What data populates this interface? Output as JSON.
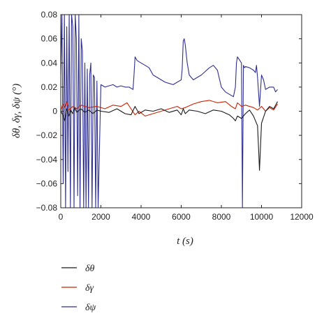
{
  "chart_data": {
    "type": "line",
    "xlabel": "t (s)",
    "ylabel": "δθ, δγ, δψ (°)",
    "xlim": [
      0,
      12000
    ],
    "ylim": [
      -0.08,
      0.08
    ],
    "xticks": [
      0,
      2000,
      4000,
      6000,
      8000,
      10000,
      12000
    ],
    "yticks": [
      0.08,
      0.06,
      0.04,
      0.02,
      0,
      -0.02,
      -0.04,
      -0.06,
      -0.08
    ],
    "xtick_labels": [
      "0",
      "2000",
      "4000",
      "6000",
      "8000",
      "10000",
      "12000"
    ],
    "ytick_labels": [
      "0.08",
      "0.06",
      "0.04",
      "0.02",
      "0",
      "−0.02",
      "−0.04",
      "−0.06",
      "−0.08"
    ],
    "grid": false,
    "legend_position": "below plot",
    "series": [
      {
        "name": "δθ",
        "color": "#1a1a1a",
        "x": [
          0,
          100,
          200,
          300,
          400,
          500,
          600,
          700,
          800,
          1000,
          1200,
          1400,
          1600,
          1800,
          2000,
          2400,
          2800,
          3200,
          3500,
          3700,
          3900,
          4200,
          4600,
          5000,
          5400,
          5800,
          6000,
          6100,
          6200,
          6400,
          6800,
          7200,
          7600,
          8000,
          8400,
          8600,
          8700,
          8800,
          9000,
          9200,
          9400,
          9600,
          9800,
          9850,
          9900,
          10000,
          10200,
          10400,
          10600,
          10800
        ],
        "y": [
          0,
          -0.003,
          -0.008,
          0.002,
          -0.004,
          0.001,
          -0.002,
          0.003,
          -0.001,
          0.002,
          -0.001,
          0.001,
          -0.002,
          0.001,
          0.0,
          -0.001,
          0.002,
          -0.002,
          -0.003,
          0.004,
          -0.002,
          0.001,
          0.0,
          0.002,
          -0.001,
          0.001,
          -0.003,
          0.002,
          -0.002,
          0.001,
          0.0,
          -0.002,
          0.001,
          0.0,
          -0.003,
          -0.006,
          -0.008,
          -0.004,
          -0.006,
          -0.002,
          0.001,
          -0.004,
          -0.012,
          -0.03,
          -0.049,
          -0.01,
          0.0,
          0.004,
          0.002,
          0.008
        ]
      },
      {
        "name": "δγ",
        "color": "#cc2200",
        "x": [
          0,
          100,
          200,
          300,
          400,
          600,
          800,
          1000,
          1400,
          1800,
          2200,
          2600,
          3000,
          3300,
          3500,
          3700,
          3900,
          4200,
          4600,
          5000,
          5400,
          5800,
          6000,
          6200,
          6600,
          7000,
          7400,
          7800,
          8200,
          8500,
          8700,
          8800,
          9000,
          9200,
          9600,
          9800,
          10000,
          10200,
          10400,
          10600,
          10800
        ],
        "y": [
          0,
          0.006,
          0.003,
          0.008,
          0.001,
          0.004,
          0.002,
          0.005,
          0.003,
          0.004,
          0.002,
          0.005,
          0.004,
          0.007,
          0.002,
          -0.003,
          0.0,
          -0.004,
          -0.002,
          0.0,
          0.002,
          0.004,
          0.002,
          0.003,
          0.006,
          0.008,
          0.009,
          0.007,
          0.008,
          0.004,
          0.002,
          0.007,
          0.004,
          0.005,
          0.003,
          0.001,
          0.004,
          0.0,
          0.003,
          0.001,
          0.006
        ]
      },
      {
        "name": "δψ",
        "color": "#2e2e8f",
        "x": [
          0,
          60,
          120,
          180,
          240,
          300,
          360,
          420,
          480,
          540,
          600,
          660,
          720,
          780,
          840,
          900,
          960,
          1020,
          1080,
          1140,
          1200,
          1260,
          1320,
          1380,
          1440,
          1500,
          1560,
          1620,
          1680,
          1740,
          1800,
          1860,
          2000,
          2200,
          2400,
          2600,
          2800,
          3000,
          3200,
          3400,
          3600,
          3650,
          3700,
          3800,
          4000,
          4200,
          4400,
          4600,
          4800,
          5000,
          5200,
          5400,
          5600,
          5800,
          6000,
          6050,
          6100,
          6150,
          6200,
          6300,
          6400,
          6600,
          6800,
          7000,
          7200,
          7400,
          7600,
          7800,
          8000,
          8200,
          8400,
          8600,
          8700,
          8750,
          8800,
          9000,
          9050,
          9100,
          9150,
          9200,
          9400,
          9600,
          9700,
          9750,
          9800,
          9900,
          10000,
          10100,
          10200,
          10400,
          10600,
          10700,
          10800
        ],
        "y": [
          0.03,
          0.08,
          -0.06,
          0.08,
          -0.08,
          0.07,
          -0.05,
          0.08,
          -0.08,
          0.08,
          0.07,
          -0.08,
          0.08,
          0.06,
          -0.07,
          0.08,
          -0.08,
          0.06,
          0.05,
          -0.08,
          0.04,
          -0.08,
          0.035,
          -0.08,
          0.03,
          0.04,
          -0.08,
          0.03,
          0.028,
          -0.08,
          0.025,
          -0.08,
          0.022,
          0.02,
          0.021,
          0.022,
          0.02,
          0.021,
          0.02,
          0.02,
          0.018,
          0.03,
          0.045,
          0.042,
          0.04,
          0.038,
          0.036,
          0.03,
          0.028,
          0.026,
          0.024,
          0.023,
          0.022,
          0.024,
          0.026,
          0.035,
          0.058,
          0.06,
          0.055,
          0.04,
          0.03,
          0.026,
          0.028,
          0.03,
          0.033,
          0.036,
          0.038,
          0.034,
          0.02,
          0.016,
          0.014,
          0.012,
          0.02,
          0.04,
          0.045,
          0.04,
          -0.08,
          0.038,
          0.036,
          0.037,
          0.036,
          0.034,
          0.032,
          0.038,
          0.028,
          0.004,
          0.03,
          0.026,
          0.018,
          0.02,
          0.02,
          0.016,
          0.018
        ]
      }
    ]
  }
}
